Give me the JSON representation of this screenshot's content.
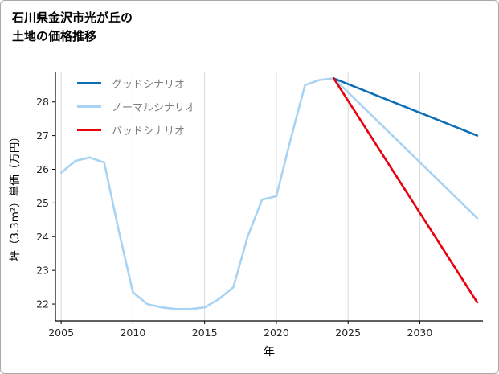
{
  "page": {
    "title_line1": "石川県金沢市光が丘の",
    "title_line2": "土地の価格推移"
  },
  "chart_data": {
    "type": "line",
    "title": "石川県金沢市光が丘の土地の価格推移",
    "xlabel": "年",
    "ylabel": "坪（3.3m²）単価（万円）",
    "xlim": [
      2004.6,
      2034.4
    ],
    "ylim": [
      21.5,
      28.9
    ],
    "xticks": [
      2005,
      2010,
      2015,
      2020,
      2025,
      2030
    ],
    "yticks": [
      22,
      23,
      24,
      25,
      26,
      27,
      28
    ],
    "grid": "vertical-only",
    "legend_position": "upper-left",
    "colors": {
      "grid": "#d8d8d8",
      "spine": "#000000",
      "tick_label": "#262626",
      "legend_text": "#7f7f7f",
      "background": "#ffffff"
    },
    "series": [
      {
        "name": "グッドシナリオ",
        "color": "#0d6eb8",
        "x": [
          2024,
          2034
        ],
        "y": [
          28.7,
          27.0
        ]
      },
      {
        "name": "ノーマルシナリオ",
        "color": "#a8d3f2",
        "x": [
          2005,
          2006,
          2007,
          2008,
          2009,
          2010,
          2011,
          2012,
          2013,
          2014,
          2015,
          2016,
          2017,
          2018,
          2019,
          2020,
          2021,
          2022,
          2023,
          2024,
          2034
        ],
        "y": [
          25.9,
          26.25,
          26.35,
          26.2,
          24.2,
          22.35,
          22.0,
          21.9,
          21.85,
          21.85,
          21.9,
          22.15,
          22.5,
          24.0,
          25.1,
          25.2,
          26.9,
          28.5,
          28.65,
          28.7,
          24.55
        ]
      },
      {
        "name": "バッドシナリオ",
        "color": "#e8000d",
        "x": [
          2024,
          2034
        ],
        "y": [
          28.7,
          22.05
        ]
      }
    ],
    "draw_order": [
      1,
      0,
      2
    ],
    "series_slugs": [
      "good",
      "normal",
      "bad"
    ]
  }
}
